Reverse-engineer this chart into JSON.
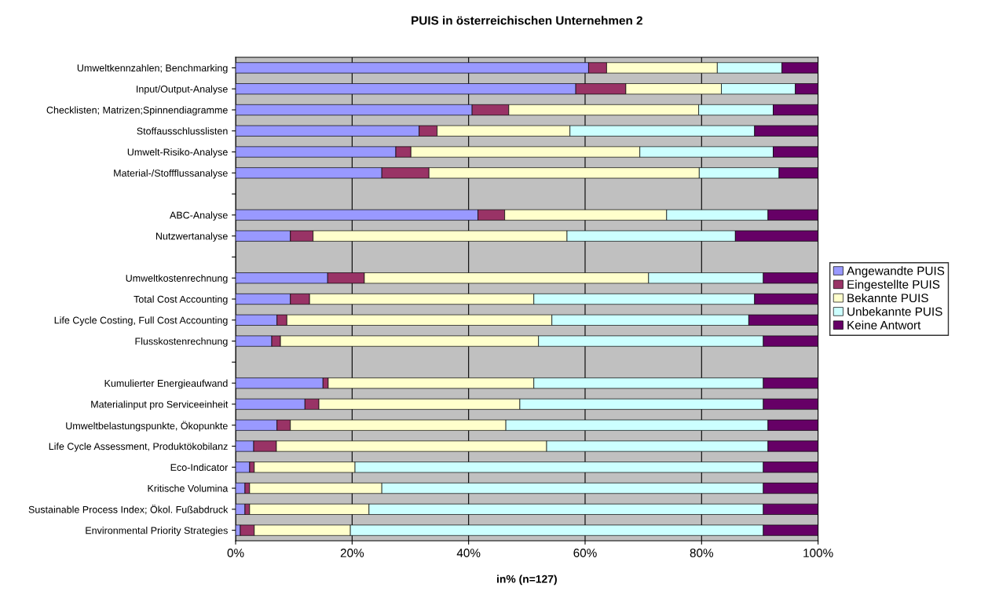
{
  "chart_data": {
    "type": "bar",
    "orientation": "horizontal",
    "stacked": true,
    "title": "PUIS in österreichischen Unternehmen 2",
    "xlabel": "in% (n=127)",
    "categories": [
      "Umweltkennzahlen; Benchmarking",
      "Input/Output-Analyse",
      "Checklisten; Matrizen;Spinnendiagramme",
      "Stoffausschlusslisten",
      "Umwelt-Risiko-Analyse",
      "Material-/Stoffflussanalyse",
      null,
      "ABC-Analyse",
      "Nutzwertanalyse",
      null,
      "Umweltkostenrechnung",
      "Total Cost Accounting",
      "Life Cycle Costing, Full Cost Accounting",
      "Flusskostenrechnung",
      null,
      "Kumulierter Energieaufwand",
      "Materialinput pro Serviceeinheit",
      "Umweltbelastungspunkte, Ökopunkte",
      "Life Cycle Assessment, Produktökobilanz",
      "Eco-Indicator",
      "Kritische Volumina",
      "Sustainable Process Index; Ökol. Fußabdruck",
      "Environmental Priority Strategies"
    ],
    "series": [
      {
        "name": "Angewandte PUIS",
        "color": "#9999ff",
        "values": [
          60.6,
          58.4,
          40.6,
          31.5,
          27.5,
          25.1,
          null,
          41.6,
          9.4,
          null,
          15.8,
          9.4,
          7.1,
          6.2,
          null,
          15.0,
          11.9,
          7.1,
          3.1,
          2.4,
          1.6,
          1.6,
          0.8
        ]
      },
      {
        "name": "Eingestellte PUIS",
        "color": "#993366",
        "values": [
          3.1,
          8.6,
          6.3,
          3.1,
          2.6,
          8.1,
          null,
          4.6,
          3.9,
          null,
          6.3,
          3.3,
          1.7,
          1.5,
          null,
          0.9,
          2.4,
          2.3,
          3.9,
          0.8,
          0.8,
          0.8,
          2.4
        ]
      },
      {
        "name": "Bekannte PUIS",
        "color": "#ffffcc",
        "values": [
          19.0,
          16.4,
          32.6,
          22.8,
          39.3,
          46.4,
          null,
          27.8,
          43.6,
          null,
          48.8,
          38.5,
          45.5,
          44.3,
          null,
          35.3,
          34.5,
          37.0,
          46.4,
          17.3,
          22.7,
          20.5,
          16.5
        ]
      },
      {
        "name": "Unbekannte PUIS",
        "color": "#ccffff",
        "values": [
          11.1,
          12.7,
          12.8,
          31.7,
          22.9,
          13.7,
          null,
          17.4,
          28.9,
          null,
          19.7,
          37.9,
          33.8,
          38.6,
          null,
          39.4,
          41.8,
          45.0,
          38.0,
          70.1,
          65.5,
          67.7,
          70.9
        ]
      },
      {
        "name": "Keine Antwort",
        "color": "#660066",
        "values": [
          6.2,
          3.9,
          7.7,
          10.9,
          7.7,
          6.7,
          null,
          8.6,
          14.2,
          null,
          9.4,
          10.9,
          11.9,
          9.4,
          null,
          9.4,
          9.4,
          8.6,
          8.6,
          9.4,
          9.4,
          9.4,
          9.4
        ]
      }
    ],
    "xlim": [
      0,
      100
    ],
    "xticks": [
      {
        "value": 0,
        "label": "0%"
      },
      {
        "value": 20,
        "label": "20%"
      },
      {
        "value": 40,
        "label": "40%"
      },
      {
        "value": 60,
        "label": "60%"
      },
      {
        "value": 80,
        "label": "80%"
      },
      {
        "value": 100,
        "label": "100%"
      }
    ],
    "grid": "x",
    "legend": "right"
  }
}
